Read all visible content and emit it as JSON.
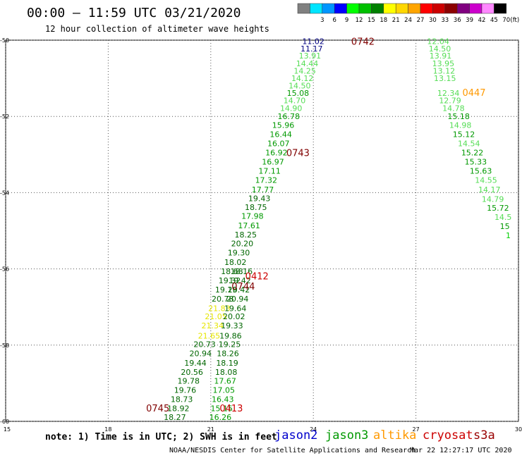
{
  "header": {
    "title": "00:00 – 11:59 UTC 03/21/2020",
    "subtitle": "12 hour collection of altimeter wave heights"
  },
  "colorbar": {
    "unit_label": "(ft)",
    "bins": [
      {
        "label": "",
        "color": "#808080"
      },
      {
        "label": "3",
        "color": "#00e5ff"
      },
      {
        "label": "6",
        "color": "#0096ff"
      },
      {
        "label": "9",
        "color": "#0000ff"
      },
      {
        "label": "12",
        "color": "#00ff00"
      },
      {
        "label": "15",
        "color": "#00c000"
      },
      {
        "label": "18",
        "color": "#008000"
      },
      {
        "label": "21",
        "color": "#ffff00"
      },
      {
        "label": "24",
        "color": "#ffd700"
      },
      {
        "label": "27",
        "color": "#ffa500"
      },
      {
        "label": "30",
        "color": "#ff0000"
      },
      {
        "label": "33",
        "color": "#cc0000"
      },
      {
        "label": "36",
        "color": "#8b0000"
      },
      {
        "label": "39",
        "color": "#800080"
      },
      {
        "label": "42",
        "color": "#cc00cc"
      },
      {
        "label": "45",
        "color": "#ff88ff"
      },
      {
        "label": "70",
        "color": "#000000"
      }
    ]
  },
  "footer": {
    "note": "note: 1) Time is in UTC; 2) SWH is in feet",
    "credit": "NOAA/NESDIS Center for Satellite Applications and Research",
    "timestamp": "Mar 22 12:27:17 UTC 2020",
    "satellites": [
      {
        "name": "jason2",
        "color": "#0000cc"
      },
      {
        "name": "jason3",
        "color": "#009900"
      },
      {
        "name": "altika",
        "color": "#ff9900"
      },
      {
        "name": "cryosat",
        "color": "#cc0000"
      },
      {
        "name": "s3a",
        "color": "#990000"
      }
    ]
  },
  "chart_data": {
    "type": "scatter",
    "xlabel": "",
    "ylabel": "",
    "xlim": [
      15,
      30
    ],
    "ylim": [
      -60,
      -50
    ],
    "x_ticks": [
      15,
      18,
      21,
      24,
      27,
      30
    ],
    "y_ticks": [
      -50,
      -52,
      -54,
      -56,
      -58,
      -60
    ],
    "x_tick_labels": [
      "15",
      "18",
      "21",
      "24",
      "27",
      "30"
    ],
    "y_tick_labels": [
      "-50",
      "-52",
      "-54",
      "-56",
      "-58",
      "-60"
    ],
    "grid": true,
    "point_colors": {
      "lt12": "#00d000",
      "12to15": "#55dd55",
      "15to18": "#009900",
      "18to21": "#006600",
      "21to24": "#e6e600",
      "navy": "#000080"
    },
    "time_labels": [
      {
        "text": "0742",
        "x": 25.45,
        "y": -50.03,
        "color": "#800000"
      },
      {
        "text": "0743",
        "x": 23.55,
        "y": -52.95,
        "color": "#800000"
      },
      {
        "text": "0744",
        "x": 21.95,
        "y": -56.45,
        "color": "#800000"
      },
      {
        "text": "0745",
        "x": 19.45,
        "y": -59.65,
        "color": "#800000"
      },
      {
        "text": "0412",
        "x": 22.35,
        "y": -56.18,
        "color": "#cc0000"
      },
      {
        "text": "0413",
        "x": 21.6,
        "y": -59.65,
        "color": "#cc0000"
      },
      {
        "text": "0447",
        "x": 28.7,
        "y": -51.37,
        "color": "#ff9900"
      }
    ],
    "series": [
      {
        "name": "",
        "points": [
          {
            "x": 24.0,
            "y": -50.03,
            "v": "11.02"
          },
          {
            "x": 23.95,
            "y": -50.22,
            "v": "11.17"
          },
          {
            "x": 23.9,
            "y": -50.41,
            "v": "13.91"
          },
          {
            "x": 23.82,
            "y": -50.61,
            "v": "14.44"
          },
          {
            "x": 23.75,
            "y": -50.8,
            "v": "14.25"
          },
          {
            "x": 23.68,
            "y": -51.0,
            "v": "14.12"
          },
          {
            "x": 23.6,
            "y": -51.19,
            "v": "14.50"
          },
          {
            "x": 23.55,
            "y": -51.39,
            "v": "15.08"
          },
          {
            "x": 23.45,
            "y": -51.58,
            "v": "14.70"
          },
          {
            "x": 23.35,
            "y": -51.78,
            "v": "14.90"
          },
          {
            "x": 23.28,
            "y": -52.0,
            "v": "16.78"
          },
          {
            "x": 23.12,
            "y": -52.23,
            "v": "15.96"
          },
          {
            "x": 23.05,
            "y": -52.47,
            "v": "16.44"
          },
          {
            "x": 22.98,
            "y": -52.71,
            "v": "16.07"
          },
          {
            "x": 22.92,
            "y": -52.95,
            "v": "16.92"
          },
          {
            "x": 22.82,
            "y": -53.19,
            "v": "16.97"
          },
          {
            "x": 22.72,
            "y": -53.43,
            "v": "17.11"
          },
          {
            "x": 22.62,
            "y": -53.67,
            "v": "17.32"
          },
          {
            "x": 22.52,
            "y": -53.92,
            "v": "17.77"
          },
          {
            "x": 22.42,
            "y": -54.15,
            "v": "19.43"
          },
          {
            "x": 22.32,
            "y": -54.38,
            "v": "18.75"
          },
          {
            "x": 22.22,
            "y": -54.61,
            "v": "17.98"
          },
          {
            "x": 22.12,
            "y": -54.86,
            "v": "17.61"
          },
          {
            "x": 22.02,
            "y": -55.1,
            "v": "18.25"
          },
          {
            "x": 21.92,
            "y": -55.33,
            "v": "20.20"
          },
          {
            "x": 21.82,
            "y": -55.57,
            "v": "19.30"
          },
          {
            "x": 21.72,
            "y": -55.82,
            "v": "18.02"
          },
          {
            "x": 21.62,
            "y": -56.06,
            "v": "18.68"
          },
          {
            "x": 21.55,
            "y": -56.3,
            "v": "19.32"
          },
          {
            "x": 21.45,
            "y": -56.54,
            "v": "19.19"
          },
          {
            "x": 21.35,
            "y": -56.78,
            "v": "20.78"
          },
          {
            "x": 21.25,
            "y": -57.03,
            "v": "21.83"
          },
          {
            "x": 21.15,
            "y": -57.25,
            "v": "21.05"
          },
          {
            "x": 21.05,
            "y": -57.49,
            "v": "21.34"
          },
          {
            "x": 20.95,
            "y": -57.75,
            "v": "21.65"
          },
          {
            "x": 20.82,
            "y": -57.98,
            "v": "20.73"
          },
          {
            "x": 20.7,
            "y": -58.22,
            "v": "20.94"
          },
          {
            "x": 20.55,
            "y": -58.47,
            "v": "19.44"
          },
          {
            "x": 20.45,
            "y": -58.71,
            "v": "20.56"
          },
          {
            "x": 20.35,
            "y": -58.94,
            "v": "19.78"
          },
          {
            "x": 20.25,
            "y": -59.18,
            "v": "19.76"
          },
          {
            "x": 20.15,
            "y": -59.42,
            "v": "18.73"
          },
          {
            "x": 20.05,
            "y": -59.66,
            "v": "18.92"
          },
          {
            "x": 19.95,
            "y": -59.89,
            "v": "18.27"
          }
        ]
      },
      {
        "name": "",
        "points": [
          {
            "x": 21.9,
            "y": -56.06,
            "v": "18.16"
          },
          {
            "x": 21.85,
            "y": -56.3,
            "v": "19.42"
          },
          {
            "x": 21.82,
            "y": -56.54,
            "v": "20.42"
          },
          {
            "x": 21.78,
            "y": -56.78,
            "v": "20.94"
          },
          {
            "x": 21.72,
            "y": -57.03,
            "v": "19.64"
          },
          {
            "x": 21.68,
            "y": -57.25,
            "v": "20.02"
          },
          {
            "x": 21.62,
            "y": -57.49,
            "v": "19.33"
          },
          {
            "x": 21.58,
            "y": -57.75,
            "v": "19.86"
          },
          {
            "x": 21.55,
            "y": -57.98,
            "v": "19.25"
          },
          {
            "x": 21.5,
            "y": -58.22,
            "v": "18.26"
          },
          {
            "x": 21.48,
            "y": -58.47,
            "v": "18.19"
          },
          {
            "x": 21.45,
            "y": -58.71,
            "v": "18.08"
          },
          {
            "x": 21.42,
            "y": -58.94,
            "v": "17.67"
          },
          {
            "x": 21.38,
            "y": -59.18,
            "v": "17.05"
          },
          {
            "x": 21.35,
            "y": -59.42,
            "v": "16.43"
          },
          {
            "x": 21.32,
            "y": -59.66,
            "v": "15.15"
          },
          {
            "x": 21.28,
            "y": -59.89,
            "v": "16.26"
          }
        ]
      },
      {
        "name": "",
        "points": [
          {
            "x": 27.65,
            "y": -50.03,
            "v": "12.04"
          },
          {
            "x": 27.7,
            "y": -50.22,
            "v": "14.50"
          },
          {
            "x": 27.72,
            "y": -50.41,
            "v": "13.91"
          },
          {
            "x": 27.8,
            "y": -50.61,
            "v": "13.95"
          },
          {
            "x": 27.82,
            "y": -50.8,
            "v": "13.12"
          },
          {
            "x": 27.85,
            "y": -51.0,
            "v": "13.15"
          },
          {
            "x": 27.95,
            "y": -51.39,
            "v": "12.34"
          },
          {
            "x": 28.0,
            "y": -51.58,
            "v": "12.79"
          },
          {
            "x": 28.1,
            "y": -51.78,
            "v": "14.78"
          },
          {
            "x": 28.25,
            "y": -52.0,
            "v": "15.18"
          },
          {
            "x": 28.3,
            "y": -52.23,
            "v": "14.98"
          },
          {
            "x": 28.4,
            "y": -52.47,
            "v": "15.12"
          },
          {
            "x": 28.55,
            "y": -52.71,
            "v": "14.54"
          },
          {
            "x": 28.65,
            "y": -52.95,
            "v": "15.22"
          },
          {
            "x": 28.75,
            "y": -53.19,
            "v": "15.33"
          },
          {
            "x": 28.9,
            "y": -53.43,
            "v": "15.63"
          },
          {
            "x": 29.05,
            "y": -53.67,
            "v": "14.55"
          },
          {
            "x": 29.15,
            "y": -53.92,
            "v": "14.17"
          },
          {
            "x": 29.25,
            "y": -54.17,
            "v": "14.79"
          },
          {
            "x": 29.4,
            "y": -54.4,
            "v": "15.72"
          },
          {
            "x": 29.55,
            "y": -54.64,
            "v": "14.5"
          },
          {
            "x": 29.6,
            "y": -54.88,
            "v": "15"
          },
          {
            "x": 29.7,
            "y": -55.12,
            "v": "1"
          }
        ]
      }
    ]
  }
}
